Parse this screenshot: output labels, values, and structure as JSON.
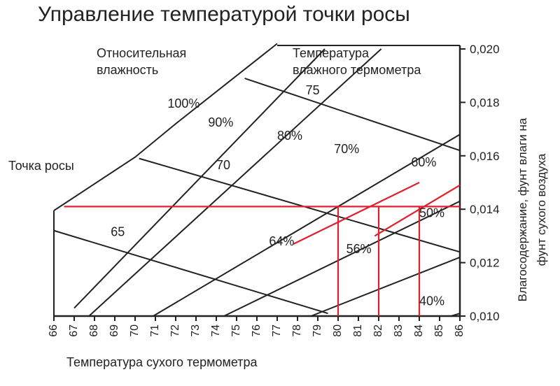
{
  "chart_data": {
    "type": "line",
    "title": "Управление температурой точки росы",
    "xlabel": "Температура сухого термометра",
    "ylabel_lines": [
      "Влагосодержание, фунт влаги на",
      "фунт сухого воздуха"
    ],
    "xlim": [
      66,
      86
    ],
    "ylim": [
      0.01,
      0.02
    ],
    "x_ticks": [
      66,
      67,
      68,
      69,
      70,
      71,
      72,
      73,
      74,
      75,
      76,
      77,
      78,
      79,
      80,
      81,
      82,
      83,
      84,
      85,
      86
    ],
    "y_ticks": [
      "0,010",
      "0,012",
      "0,014",
      "0,016",
      "0,018",
      "0,020"
    ],
    "y_tick_values": [
      0.01,
      0.012,
      0.014,
      0.016,
      0.018,
      0.02
    ],
    "rh_header": [
      "Относительная",
      "влажность"
    ],
    "wb_header": [
      "Температура",
      "влажного термометра"
    ],
    "dew_point_label": "Точка росы",
    "saturation_curve": [
      [
        66,
        0.01395
      ],
      [
        70,
        0.01595
      ],
      [
        72,
        0.0172
      ],
      [
        76,
        0.0196
      ],
      [
        77,
        0.0202
      ]
    ],
    "rh_lines": [
      {
        "label": "100%",
        "points": [
          [
            66,
            0.01395
          ],
          [
            77,
            0.0202
          ]
        ]
      },
      {
        "label": "90%",
        "points": [
          [
            67,
            0.0103
          ],
          [
            79.6,
            0.0202
          ]
        ]
      },
      {
        "label": "80%",
        "points": [
          [
            66,
            0.0088
          ],
          [
            82.7,
            0.0204
          ]
        ]
      },
      {
        "label": "70%",
        "points": [
          [
            66,
            0.0078
          ],
          [
            86,
            0.0168
          ]
        ]
      },
      {
        "label": "60%",
        "points": [
          [
            66,
            0.0069
          ],
          [
            86,
            0.0143
          ]
        ]
      },
      {
        "label": "50%",
        "points": [
          [
            66,
            0.0062
          ],
          [
            86,
            0.0122
          ]
        ]
      },
      {
        "label": "40%",
        "points": [
          [
            66,
            0.0055
          ],
          [
            86,
            0.0101
          ]
        ]
      }
    ],
    "wb_lines": [
      {
        "label": "75",
        "points": [
          [
            75.4,
            0.0189
          ],
          [
            86,
            0.0162
          ]
        ]
      },
      {
        "label": "70",
        "points": [
          [
            70.2,
            0.0159
          ],
          [
            86,
            0.0124
          ]
        ]
      },
      {
        "label": "65",
        "points": [
          [
            66,
            0.0132
          ],
          [
            79.5,
            0.0101
          ]
        ]
      }
    ],
    "process": {
      "dew_point_w": 0.0141,
      "verticals": [
        80,
        82,
        84
      ],
      "rh_segments": [
        {
          "label": "64%",
          "points": [
            [
              77.8,
              0.0127
            ],
            [
              84.0,
              0.015
            ]
          ]
        },
        {
          "label": "56%",
          "points": [
            [
              81.8,
              0.013
            ],
            [
              86.0,
              0.0149
            ]
          ]
        }
      ]
    },
    "annotations": {
      "100%": [
        71.6,
        0.0178
      ],
      "90%": [
        73.6,
        0.0171
      ],
      "80%": [
        77.0,
        0.0166
      ],
      "70%": [
        79.8,
        0.0161
      ],
      "60%": [
        83.6,
        0.0156
      ],
      "50%": [
        84.0,
        0.0137
      ],
      "40%": [
        84.0,
        0.0104
      ],
      "64%": [
        76.6,
        0.01265
      ],
      "56%": [
        80.4,
        0.01235
      ],
      "75": [
        78.4,
        0.0183
      ],
      "70": [
        74.0,
        0.0155
      ],
      "65": [
        68.8,
        0.013
      ]
    },
    "grid": false,
    "legend": "none",
    "colors": {
      "structure": "#222222",
      "process": "#e0202c"
    }
  }
}
